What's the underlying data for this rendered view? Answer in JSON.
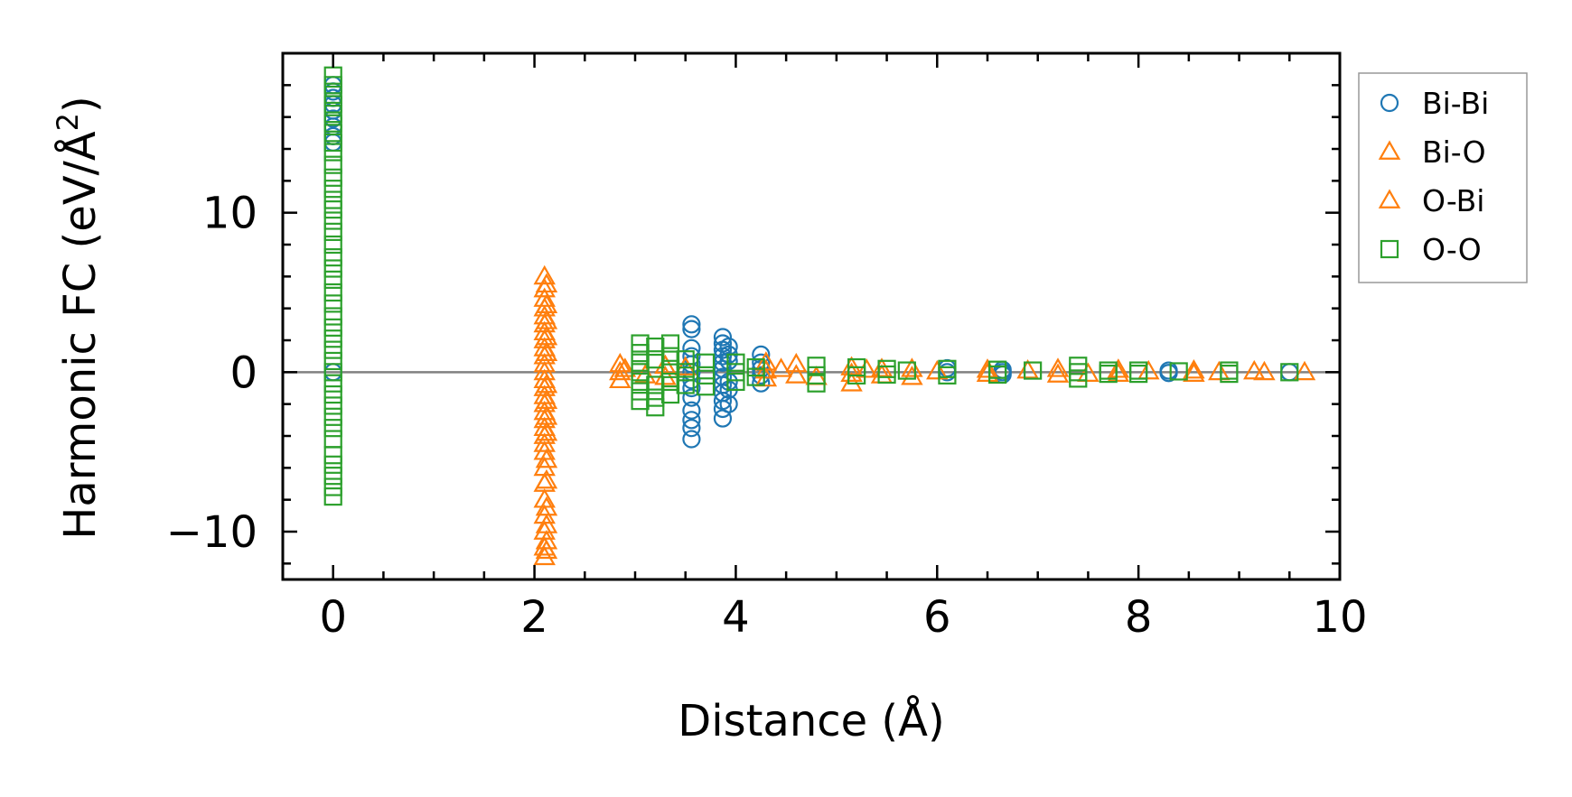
{
  "chart_data": {
    "type": "scatter",
    "title": "",
    "xlabel": "Distance (Å)",
    "ylabel_main": "Harmonic FC (eV/Å",
    "ylabel_sup": "2",
    "ylabel_close": ")",
    "xlim": [
      -0.5,
      10.0
    ],
    "ylim": [
      -13.0,
      20.0
    ],
    "x_ticks": [
      0,
      2,
      4,
      6,
      8,
      10
    ],
    "x_tick_labels": [
      "0",
      "2",
      "4",
      "6",
      "8",
      "10"
    ],
    "y_ticks": [
      -10,
      0,
      10
    ],
    "y_tick_labels": [
      "−10",
      "0",
      "10"
    ],
    "zero_line": true,
    "grid": false,
    "legend_position": "outside-right-top",
    "series": [
      {
        "name": "Bi-Bi",
        "marker": "circle",
        "color": "#1f77b4",
        "points": [
          [
            0,
            18.0
          ],
          [
            0,
            17.6
          ],
          [
            0,
            17.2
          ],
          [
            0,
            16.8
          ],
          [
            0,
            16.4
          ],
          [
            0,
            15.9
          ],
          [
            0,
            15.4
          ],
          [
            0,
            14.8
          ],
          [
            0,
            14.4
          ],
          [
            0,
            0.0
          ],
          [
            3.56,
            3.0
          ],
          [
            3.56,
            2.7
          ],
          [
            3.56,
            1.5
          ],
          [
            3.56,
            1.0
          ],
          [
            3.56,
            0.5
          ],
          [
            3.56,
            0.0
          ],
          [
            3.56,
            -0.5
          ],
          [
            3.56,
            -1.0
          ],
          [
            3.56,
            -1.6
          ],
          [
            3.56,
            -2.4
          ],
          [
            3.56,
            -3.0
          ],
          [
            3.56,
            -3.5
          ],
          [
            3.56,
            -4.2
          ],
          [
            3.87,
            2.2
          ],
          [
            3.87,
            1.8
          ],
          [
            3.87,
            1.4
          ],
          [
            3.87,
            1.0
          ],
          [
            3.87,
            0.6
          ],
          [
            3.87,
            0.2
          ],
          [
            3.87,
            -0.3
          ],
          [
            3.87,
            -0.8
          ],
          [
            3.87,
            -1.3
          ],
          [
            3.87,
            -1.8
          ],
          [
            3.87,
            -2.3
          ],
          [
            3.87,
            -2.9
          ],
          [
            3.93,
            1.6
          ],
          [
            3.93,
            1.1
          ],
          [
            3.93,
            0.7
          ],
          [
            3.93,
            -0.6
          ],
          [
            3.93,
            -1.1
          ],
          [
            3.93,
            -2.0
          ],
          [
            4.25,
            1.1
          ],
          [
            4.25,
            0.6
          ],
          [
            4.25,
            0.2
          ],
          [
            4.25,
            -0.2
          ],
          [
            4.25,
            -0.7
          ],
          [
            6.1,
            0.25
          ],
          [
            6.1,
            0.0
          ],
          [
            6.65,
            0.15
          ],
          [
            6.65,
            0.0
          ],
          [
            6.65,
            -0.15
          ],
          [
            8.3,
            0.1
          ],
          [
            8.3,
            -0.05
          ],
          [
            9.5,
            0.0
          ]
        ]
      },
      {
        "name": "Bi-O",
        "marker": "triangle",
        "color": "#ff7f0e",
        "points": [
          [
            2.1,
            6.0
          ],
          [
            2.1,
            5.2
          ],
          [
            2.1,
            4.6
          ],
          [
            2.1,
            4.0
          ],
          [
            2.1,
            3.5
          ],
          [
            2.1,
            3.0
          ],
          [
            2.1,
            2.5
          ],
          [
            2.1,
            2.0
          ],
          [
            2.1,
            1.5
          ],
          [
            2.1,
            1.0
          ],
          [
            2.1,
            0.5
          ],
          [
            2.1,
            0.0
          ],
          [
            2.1,
            -0.5
          ],
          [
            2.1,
            -1.0
          ],
          [
            2.1,
            -1.5
          ],
          [
            2.1,
            -2.0
          ],
          [
            2.1,
            -2.5
          ],
          [
            2.1,
            -3.0
          ],
          [
            2.1,
            -3.5
          ],
          [
            2.1,
            -4.0
          ],
          [
            2.1,
            -4.5
          ],
          [
            2.1,
            -5.0
          ],
          [
            2.1,
            -6.0
          ],
          [
            2.1,
            -7.0
          ],
          [
            2.1,
            -8.0
          ],
          [
            2.1,
            -9.0
          ],
          [
            2.1,
            -10.0
          ],
          [
            2.1,
            -11.0
          ],
          [
            2.1,
            -11.6
          ],
          [
            2.85,
            0.5
          ],
          [
            2.85,
            0.0
          ],
          [
            2.85,
            -0.5
          ],
          [
            3.3,
            0.4
          ],
          [
            3.3,
            -0.3
          ],
          [
            4.3,
            0.6
          ],
          [
            4.3,
            0.1
          ],
          [
            4.3,
            -0.4
          ],
          [
            4.6,
            0.5
          ],
          [
            4.6,
            -0.2
          ],
          [
            5.15,
            0.3
          ],
          [
            5.15,
            -0.1
          ],
          [
            5.15,
            -0.7
          ],
          [
            5.45,
            0.2
          ],
          [
            5.45,
            -0.2
          ],
          [
            5.75,
            0.2
          ],
          [
            5.75,
            -0.3
          ],
          [
            6.5,
            0.15
          ],
          [
            6.5,
            -0.1
          ],
          [
            7.2,
            0.2
          ],
          [
            7.2,
            -0.15
          ],
          [
            7.8,
            0.15
          ],
          [
            7.8,
            -0.1
          ],
          [
            8.55,
            0.1
          ],
          [
            8.55,
            -0.1
          ],
          [
            9.15,
            0.05
          ],
          [
            9.25,
            0.0
          ],
          [
            9.65,
            0.0
          ]
        ]
      },
      {
        "name": "O-Bi",
        "marker": "triangle",
        "color": "#ff7f0e",
        "points": [
          [
            2.12,
            5.5
          ],
          [
            2.12,
            4.2
          ],
          [
            2.12,
            3.2
          ],
          [
            2.12,
            2.2
          ],
          [
            2.12,
            1.2
          ],
          [
            2.12,
            -0.8
          ],
          [
            2.12,
            -1.8
          ],
          [
            2.12,
            -2.8
          ],
          [
            2.12,
            -3.8
          ],
          [
            2.12,
            -5.5
          ],
          [
            2.12,
            -6.8
          ],
          [
            2.12,
            -8.5
          ],
          [
            2.12,
            -9.6
          ],
          [
            2.12,
            -10.6
          ],
          [
            2.12,
            -11.2
          ],
          [
            2.9,
            0.2
          ],
          [
            3.1,
            -0.2
          ],
          [
            3.5,
            0.3
          ],
          [
            4.45,
            0.2
          ],
          [
            4.8,
            -0.3
          ],
          [
            5.3,
            0.15
          ],
          [
            6.0,
            0.05
          ],
          [
            6.9,
            0.1
          ],
          [
            7.5,
            -0.1
          ],
          [
            8.1,
            0.05
          ],
          [
            8.8,
            0.0
          ]
        ]
      },
      {
        "name": "O-O",
        "marker": "square",
        "color": "#2ca02c",
        "points": [
          [
            0,
            18.6
          ],
          [
            0,
            18.0
          ],
          [
            0,
            17.4
          ],
          [
            0,
            16.8
          ],
          [
            0,
            16.2
          ],
          [
            0,
            15.6
          ],
          [
            0,
            15.0
          ],
          [
            0,
            14.4
          ],
          [
            0,
            13.8
          ],
          [
            0,
            13.0
          ],
          [
            0,
            12.2
          ],
          [
            0,
            11.5
          ],
          [
            0,
            10.8
          ],
          [
            0,
            10.2
          ],
          [
            0,
            9.5
          ],
          [
            0,
            8.8
          ],
          [
            0,
            8.0
          ],
          [
            0,
            7.2
          ],
          [
            0,
            6.5
          ],
          [
            0,
            5.8
          ],
          [
            0,
            5.0
          ],
          [
            0,
            4.3
          ],
          [
            0,
            3.5
          ],
          [
            0,
            2.8
          ],
          [
            0,
            2.1
          ],
          [
            0,
            1.4
          ],
          [
            0,
            0.7
          ],
          [
            0,
            0.0
          ],
          [
            0,
            -0.7
          ],
          [
            0,
            -1.4
          ],
          [
            0,
            -2.1
          ],
          [
            0,
            -2.8
          ],
          [
            0,
            -3.5
          ],
          [
            0,
            -4.2
          ],
          [
            0,
            -5.2
          ],
          [
            0,
            -5.8
          ],
          [
            0,
            -6.5
          ],
          [
            0,
            -7.2
          ],
          [
            0,
            -7.8
          ],
          [
            3.05,
            1.8
          ],
          [
            3.05,
            1.2
          ],
          [
            3.05,
            0.6
          ],
          [
            3.05,
            0.0
          ],
          [
            3.05,
            -0.6
          ],
          [
            3.05,
            -1.2
          ],
          [
            3.05,
            -1.8
          ],
          [
            3.2,
            1.6
          ],
          [
            3.2,
            0.8
          ],
          [
            3.2,
            -0.8
          ],
          [
            3.2,
            -1.6
          ],
          [
            3.2,
            -2.2
          ],
          [
            3.35,
            1.8
          ],
          [
            3.35,
            1.0
          ],
          [
            3.35,
            0.2
          ],
          [
            3.35,
            -0.6
          ],
          [
            3.35,
            -1.4
          ],
          [
            3.5,
            0.8
          ],
          [
            3.5,
            0.0
          ],
          [
            3.5,
            -0.8
          ],
          [
            3.7,
            0.6
          ],
          [
            3.7,
            -0.2
          ],
          [
            3.7,
            -0.9
          ],
          [
            4.0,
            0.6
          ],
          [
            4.0,
            0.0
          ],
          [
            4.0,
            -0.6
          ],
          [
            4.2,
            0.3
          ],
          [
            4.2,
            -0.3
          ],
          [
            4.8,
            0.4
          ],
          [
            4.8,
            -0.2
          ],
          [
            4.8,
            -0.7
          ],
          [
            5.2,
            0.3
          ],
          [
            5.2,
            -0.2
          ],
          [
            5.5,
            0.2
          ],
          [
            5.5,
            -0.15
          ],
          [
            5.7,
            0.1
          ],
          [
            6.1,
            0.2
          ],
          [
            6.1,
            -0.2
          ],
          [
            6.6,
            0.15
          ],
          [
            6.6,
            -0.15
          ],
          [
            6.95,
            0.1
          ],
          [
            7.4,
            0.4
          ],
          [
            7.4,
            0.0
          ],
          [
            7.4,
            -0.4
          ],
          [
            7.7,
            0.1
          ],
          [
            7.7,
            -0.1
          ],
          [
            8.0,
            0.1
          ],
          [
            8.0,
            -0.1
          ],
          [
            8.4,
            0.05
          ],
          [
            8.9,
            0.1
          ],
          [
            8.9,
            -0.1
          ],
          [
            9.5,
            0.0
          ]
        ]
      }
    ]
  }
}
